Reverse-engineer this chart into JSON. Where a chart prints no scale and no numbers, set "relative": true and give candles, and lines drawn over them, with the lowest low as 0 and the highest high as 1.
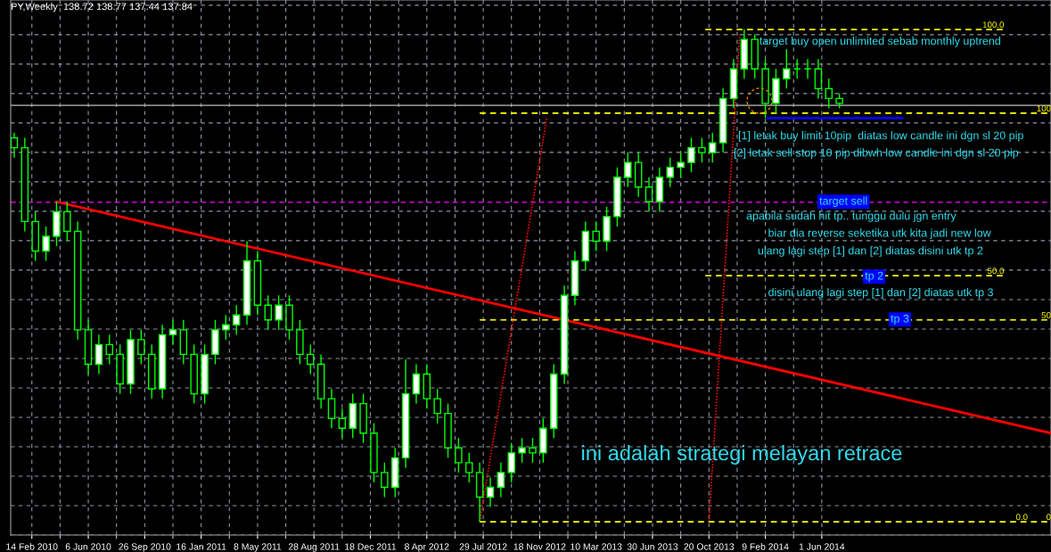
{
  "chart_data": {
    "type": "candlestick",
    "title": "PY,Weekly  138.72 138.77 137.44 137.84",
    "relative": true,
    "color": "#00ff00",
    "grid": true,
    "tick_labels": "x",
    "xlim": [
      "2010-01-03",
      "2015-08-30"
    ],
    "xticks": [
      {
        "value": "2010-02-14",
        "label": "14 Feb 2010"
      },
      {
        "value": "2010-06-06",
        "label": "6 Jun 2010"
      },
      {
        "value": "2010-09-26",
        "label": "26 Sep 2010"
      },
      {
        "value": "2011-01-16",
        "label": "16 Jan 2011"
      },
      {
        "value": "2011-05-08",
        "label": "8 May 2011"
      },
      {
        "value": "2011-08-28",
        "label": "28 Aug 2011"
      },
      {
        "value": "2011-12-18",
        "label": "18 Dec 2011"
      },
      {
        "value": "2012-04-08",
        "label": "8 Apr 2012"
      },
      {
        "value": "2012-07-29",
        "label": "29 Jul 2012"
      },
      {
        "value": "2012-11-18",
        "label": "18 Nov 2012"
      },
      {
        "value": "2013-03-10",
        "label": "10 Mar 2013"
      },
      {
        "value": "2013-06-30",
        "label": "30 Jun 2013"
      },
      {
        "value": "2013-10-20",
        "label": "20 Oct 2013"
      },
      {
        "value": "2014-02-09",
        "label": "9 Feb 2014"
      },
      {
        "value": "2014-06-01",
        "label": "1 Jun 2014"
      }
    ],
    "x": [
      "2010-01-10",
      "2010-01-31",
      "2010-02-21",
      "2010-03-14",
      "2010-04-04",
      "2010-04-25",
      "2010-05-16",
      "2010-06-06",
      "2010-06-27",
      "2010-07-18",
      "2010-08-08",
      "2010-08-29",
      "2010-09-19",
      "2010-10-10",
      "2010-10-31",
      "2010-11-21",
      "2010-12-12",
      "2011-01-02",
      "2011-01-23",
      "2011-02-13",
      "2011-03-06",
      "2011-03-27",
      "2011-04-17",
      "2011-05-08",
      "2011-05-29",
      "2011-06-19",
      "2011-07-10",
      "2011-07-31",
      "2011-08-21",
      "2011-09-11",
      "2011-10-02",
      "2011-10-23",
      "2011-11-13",
      "2011-12-04",
      "2011-12-25",
      "2012-01-15",
      "2012-02-05",
      "2012-02-26",
      "2012-03-18",
      "2012-04-08",
      "2012-04-29",
      "2012-05-20",
      "2012-06-10",
      "2012-07-01",
      "2012-07-22",
      "2012-08-12",
      "2012-09-02",
      "2012-09-23",
      "2012-10-14",
      "2012-11-04",
      "2012-11-25",
      "2012-12-16",
      "2013-01-06",
      "2013-01-27",
      "2013-02-17",
      "2013-03-10",
      "2013-03-31",
      "2013-04-21",
      "2013-05-12",
      "2013-06-02",
      "2013-06-23",
      "2013-07-14",
      "2013-08-04",
      "2013-08-25",
      "2013-09-15",
      "2013-10-06",
      "2013-10-27",
      "2013-11-17",
      "2013-12-08",
      "2013-12-29",
      "2014-01-19",
      "2014-02-09",
      "2014-03-02",
      "2014-03-23",
      "2014-04-13",
      "2014-05-04",
      "2014-05-25",
      "2014-06-15",
      "2014-07-06"
    ],
    "ohlc": [
      [
        0.78,
        0.79,
        0.74,
        0.76
      ],
      [
        0.76,
        0.78,
        0.59,
        0.61
      ],
      [
        0.61,
        0.63,
        0.53,
        0.55
      ],
      [
        0.55,
        0.6,
        0.53,
        0.58
      ],
      [
        0.58,
        0.65,
        0.56,
        0.63
      ],
      [
        0.63,
        0.65,
        0.57,
        0.59
      ],
      [
        0.59,
        0.61,
        0.37,
        0.39
      ],
      [
        0.39,
        0.41,
        0.3,
        0.32
      ],
      [
        0.32,
        0.38,
        0.3,
        0.36
      ],
      [
        0.36,
        0.38,
        0.32,
        0.34
      ],
      [
        0.34,
        0.36,
        0.26,
        0.28
      ],
      [
        0.28,
        0.39,
        0.26,
        0.37
      ],
      [
        0.37,
        0.39,
        0.32,
        0.34
      ],
      [
        0.34,
        0.36,
        0.25,
        0.27
      ],
      [
        0.27,
        0.4,
        0.25,
        0.38
      ],
      [
        0.38,
        0.41,
        0.36,
        0.39
      ],
      [
        0.39,
        0.41,
        0.32,
        0.34
      ],
      [
        0.34,
        0.36,
        0.24,
        0.26
      ],
      [
        0.26,
        0.36,
        0.24,
        0.34
      ],
      [
        0.34,
        0.41,
        0.32,
        0.39
      ],
      [
        0.39,
        0.42,
        0.37,
        0.4
      ],
      [
        0.4,
        0.44,
        0.38,
        0.42
      ],
      [
        0.42,
        0.57,
        0.4,
        0.53
      ],
      [
        0.53,
        0.55,
        0.42,
        0.44
      ],
      [
        0.44,
        0.46,
        0.39,
        0.41
      ],
      [
        0.41,
        0.46,
        0.39,
        0.44
      ],
      [
        0.44,
        0.46,
        0.37,
        0.39
      ],
      [
        0.39,
        0.41,
        0.32,
        0.34
      ],
      [
        0.34,
        0.36,
        0.3,
        0.32
      ],
      [
        0.32,
        0.34,
        0.23,
        0.25
      ],
      [
        0.25,
        0.27,
        0.19,
        0.21
      ],
      [
        0.21,
        0.23,
        0.17,
        0.19
      ],
      [
        0.19,
        0.26,
        0.17,
        0.24
      ],
      [
        0.24,
        0.26,
        0.16,
        0.18
      ],
      [
        0.18,
        0.2,
        0.08,
        0.1
      ],
      [
        0.1,
        0.12,
        0.05,
        0.07
      ],
      [
        0.07,
        0.15,
        0.05,
        0.13
      ],
      [
        0.13,
        0.33,
        0.11,
        0.26
      ],
      [
        0.26,
        0.32,
        0.24,
        0.3
      ],
      [
        0.3,
        0.32,
        0.23,
        0.25
      ],
      [
        0.25,
        0.27,
        0.2,
        0.22
      ],
      [
        0.22,
        0.24,
        0.13,
        0.15
      ],
      [
        0.15,
        0.17,
        0.1,
        0.12
      ],
      [
        0.12,
        0.14,
        0.08,
        0.1
      ],
      [
        0.1,
        0.12,
        0,
        0.05
      ],
      [
        0.05,
        0.09,
        0.03,
        0.07
      ],
      [
        0.07,
        0.12,
        0.05,
        0.1
      ],
      [
        0.1,
        0.16,
        0.08,
        0.14
      ],
      [
        0.14,
        0.17,
        0.12,
        0.15
      ],
      [
        0.15,
        0.17,
        0.12,
        0.14
      ],
      [
        0.14,
        0.21,
        0.12,
        0.19
      ],
      [
        0.19,
        0.32,
        0.17,
        0.3
      ],
      [
        0.3,
        0.48,
        0.28,
        0.46
      ],
      [
        0.46,
        0.55,
        0.44,
        0.53
      ],
      [
        0.53,
        0.61,
        0.51,
        0.59
      ],
      [
        0.59,
        0.61,
        0.55,
        0.57
      ],
      [
        0.57,
        0.64,
        0.55,
        0.62
      ],
      [
        0.62,
        0.72,
        0.6,
        0.7
      ],
      [
        0.7,
        0.75,
        0.68,
        0.73
      ],
      [
        0.73,
        0.75,
        0.66,
        0.68
      ],
      [
        0.68,
        0.7,
        0.63,
        0.65
      ],
      [
        0.65,
        0.72,
        0.63,
        0.7
      ],
      [
        0.7,
        0.74,
        0.68,
        0.72
      ],
      [
        0.72,
        0.75,
        0.7,
        0.73
      ],
      [
        0.73,
        0.78,
        0.71,
        0.76
      ],
      [
        0.76,
        0.78,
        0.73,
        0.75
      ],
      [
        0.75,
        0.79,
        0.73,
        0.77
      ],
      [
        0.77,
        0.88,
        0.75,
        0.86
      ],
      [
        0.86,
        0.94,
        0.84,
        0.92
      ],
      [
        0.92,
        1.0,
        0.9,
        0.98
      ],
      [
        0.98,
        0.99,
        0.9,
        0.92
      ],
      [
        0.92,
        0.94,
        0.82,
        0.85
      ],
      [
        0.85,
        0.92,
        0.83,
        0.9
      ],
      [
        0.9,
        0.96,
        0.88,
        0.92
      ],
      [
        0.92,
        0.94,
        0.9,
        0.92
      ],
      [
        0.92,
        0.94,
        0.9,
        0.92
      ],
      [
        0.92,
        0.94,
        0.86,
        0.88
      ],
      [
        0.88,
        0.9,
        0.84,
        0.86
      ],
      [
        0.86,
        0.87,
        0.84,
        0.85
      ]
    ],
    "series": [
      {
        "type": "line",
        "color": "#ff0000",
        "line_style": "solid",
        "x": [
          "2010-04-04",
          "2015-08-30"
        ],
        "values": [
          0.65,
          0.18
        ]
      },
      {
        "type": "line",
        "color": "#ff0000",
        "line_style": "dotted",
        "x": [
          "2012-07-22",
          "2012-12-02"
        ],
        "values": [
          0,
          0.82
        ]
      },
      {
        "type": "line",
        "color": "#ff0000",
        "line_style": "dotted",
        "x": [
          "2013-10-20",
          "2013-12-20"
        ],
        "values": [
          0,
          0.99
        ]
      },
      {
        "type": "line",
        "color": "#ffff00",
        "line_style": "dashed",
        "x": [
          "2013-10-13",
          "2015-05-29"
        ],
        "values": [
          1.0,
          1.0
        ]
      },
      {
        "type": "line",
        "color": "#ffff00",
        "line_style": "dashed",
        "x": [
          "2013-10-13",
          "2015-05-29"
        ],
        "values": [
          0.5,
          0.5
        ]
      },
      {
        "type": "line",
        "color": "#ffff00",
        "line_style": "dashed",
        "x": [
          "2012-07-22",
          "2015-08-30"
        ],
        "values": [
          0,
          0
        ]
      },
      {
        "type": "line",
        "color": "#ffff00",
        "line_style": "dashed",
        "x": [
          "2012-07-22",
          "2015-08-30"
        ],
        "values": [
          0.83,
          0.83
        ]
      },
      {
        "type": "line",
        "color": "#ffff00",
        "line_style": "dashed",
        "x": [
          "2012-07-22",
          "2015-08-30"
        ],
        "values": [
          0.41,
          0.41
        ]
      },
      {
        "type": "line",
        "color": "#0000ff",
        "line_style": "solid",
        "x": [
          "2014-02-14",
          "2014-11-08"
        ],
        "values": [
          0.82,
          0.82
        ]
      }
    ],
    "ref_lines": [
      {
        "axis": "y",
        "value": 0.649,
        "color": "#ff00ff",
        "line_style": "dashed"
      },
      {
        "axis": "y",
        "value": 0.846,
        "color": "#c0c0c0",
        "line_style": "solid"
      }
    ],
    "annotations": [
      {
        "text": "target buy open unlimited sebab monthly uptrend",
        "x": "2014-01-28",
        "y": 0.975
      },
      {
        "text": "[1] letak buy limit 10pip  diatas low candle ini dgn sl 20 pip",
        "x": "2013-12-17",
        "y": 0.783
      },
      "[2] letak sell stop 10 pip dibwh low candle ini dgn sl 20 pip",
      {
        "text": "target sell",
        "x": "2014-07-14",
        "y": 0.65
      },
      "apabila sudah hit tp.. tunggu dulu jgn entry",
      "biar dia reverse seketika utk kita jadi new low",
      "ulang lagi step [1] dan [2] diatas disini utk tp 2",
      {
        "text": "tp 2",
        "x": "2014-09-13",
        "y": 0.498
      },
      "disini ulang lagi step [1] dan [2] diatas utk tp 3",
      {
        "text": "tp 3",
        "x": "2014-11-03",
        "y": 0.411
      },
      "ini adalah strategi melayan retrace",
      {
        "text": "100.0",
        "x": "2015-05-29",
        "y": 1.0
      },
      {
        "text": "50.0",
        "x": "2015-05-29",
        "y": 0.5
      },
      {
        "text": "0.0",
        "x": "2015-07-15",
        "y": 0
      },
      {
        "text": "100",
        "x": "2015-08-30",
        "y": 0.83
      },
      {
        "text": "50",
        "x": "2015-08-30",
        "y": 0.41
      },
      {
        "text": "0",
        "x": "2015-08-30",
        "y": 0
      }
    ]
  }
}
